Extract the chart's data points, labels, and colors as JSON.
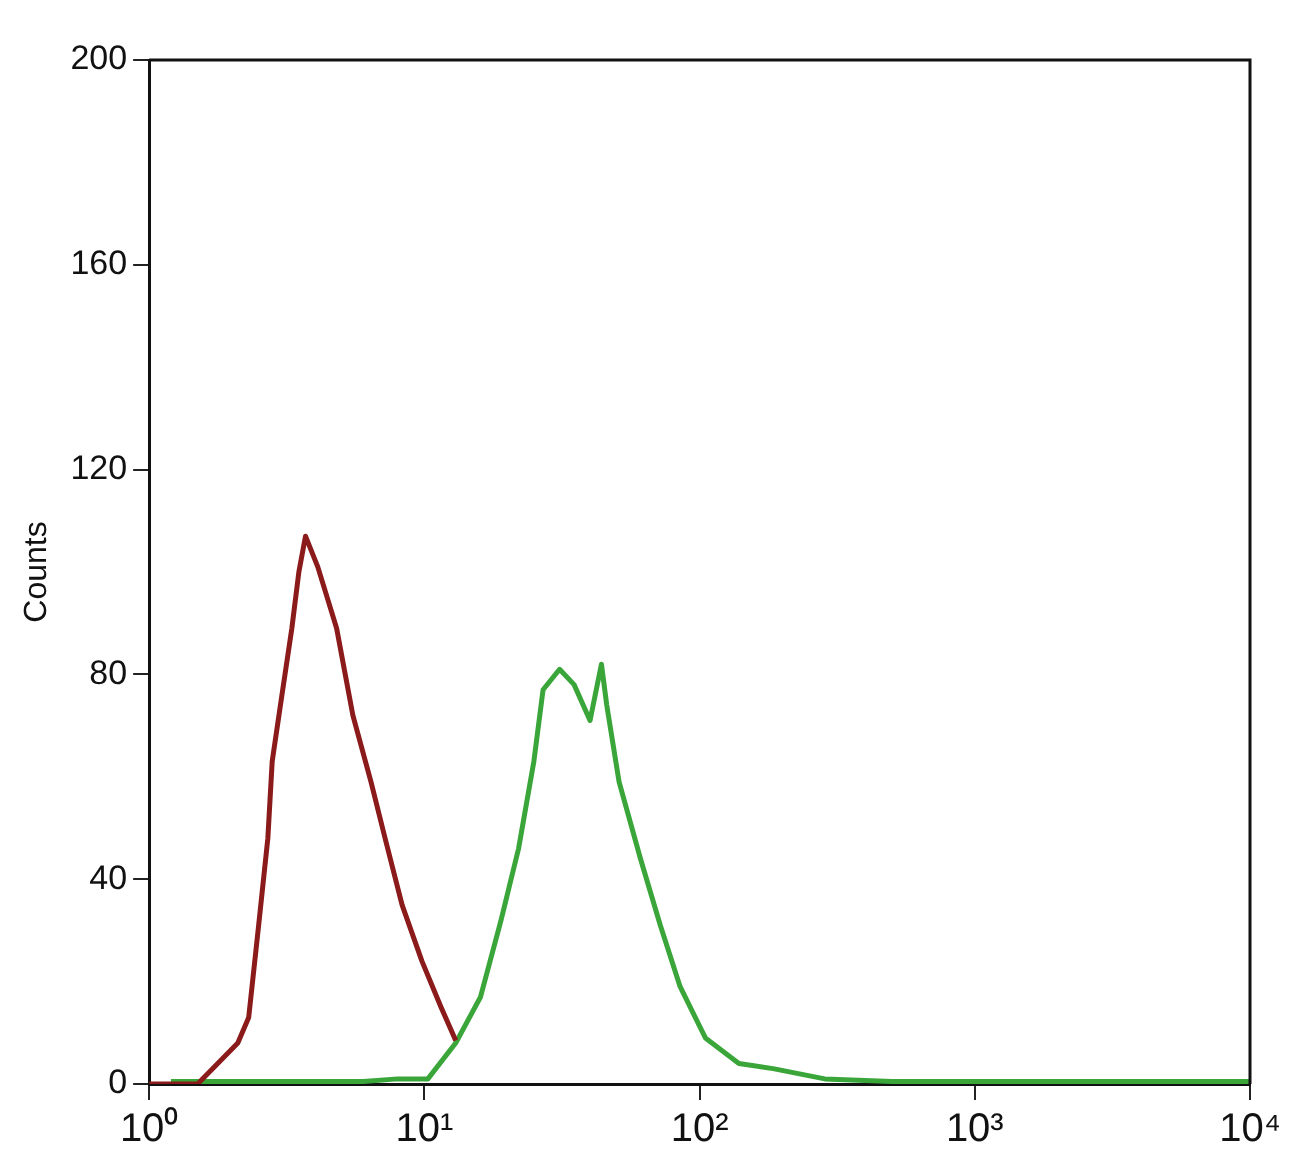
{
  "chart_data": {
    "type": "line",
    "ylabel": "Counts",
    "log": "x",
    "xlim": [
      1,
      10000
    ],
    "xticks": [
      {
        "value": 1,
        "label": "10⁰"
      },
      {
        "value": 10,
        "label": "10¹"
      },
      {
        "value": 100,
        "label": "10²"
      },
      {
        "value": 1000,
        "label": "10³"
      },
      {
        "value": 10000,
        "label": "10⁴"
      }
    ],
    "ylim": [
      0,
      200
    ],
    "yticks": [
      0,
      40,
      80,
      120,
      160,
      200
    ],
    "grid": false,
    "legend": false,
    "marker": "none",
    "line_style": "solid",
    "series": [
      {
        "color": "#8b1a1a",
        "x": [
          1,
          1.3,
          1.5,
          2.1,
          2.3,
          2.5,
          2.7,
          2.8,
          3.0,
          3.3,
          3.5,
          3.7,
          4.1,
          4.8,
          5.5,
          6.4,
          7.2,
          8.3,
          9.8,
          11.5,
          13
        ],
        "values": [
          0,
          0,
          0,
          8,
          13,
          31,
          48,
          63,
          74,
          89,
          100,
          107,
          101,
          89,
          72,
          59,
          48,
          35,
          24,
          15,
          8.5
        ]
      },
      {
        "color": "#3aa63a",
        "x": [
          1.2,
          3,
          6,
          8,
          10.3,
          13,
          16,
          19,
          22,
          25,
          27,
          31,
          35,
          40,
          44,
          46,
          51,
          61,
          72,
          85,
          105,
          139,
          185,
          285,
          500,
          1000,
          3000,
          10000
        ],
        "values": [
          0.5,
          0.5,
          0.5,
          1,
          1,
          8,
          17,
          32,
          46,
          63,
          77,
          81,
          78,
          71,
          82,
          74,
          59,
          44,
          31,
          19,
          9,
          4,
          3,
          1,
          0.5,
          0.5,
          0.5,
          0.5
        ]
      }
    ]
  }
}
